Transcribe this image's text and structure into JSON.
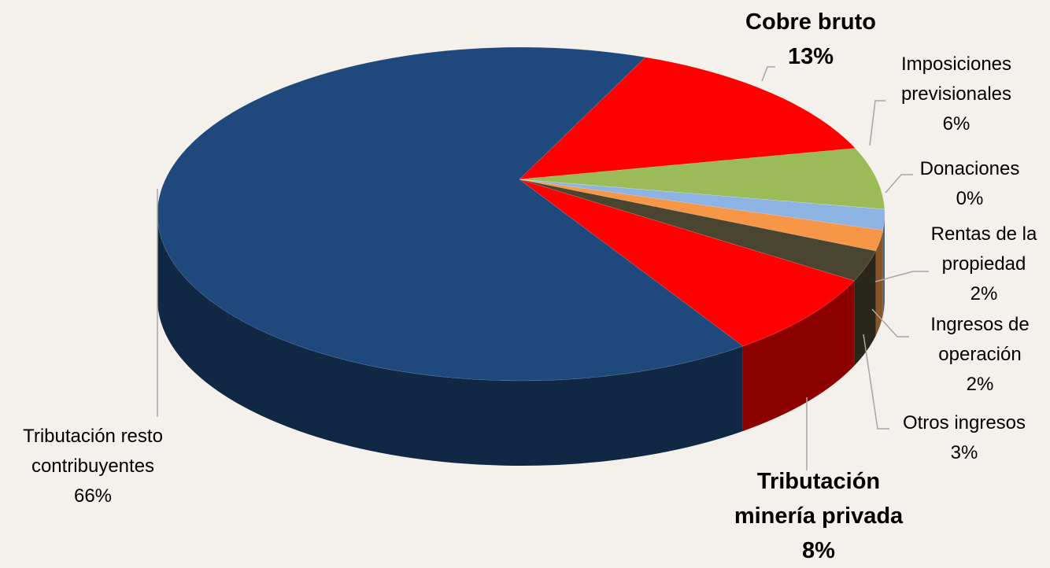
{
  "chart_data": {
    "type": "pie",
    "categories": [
      "Cobre bruto",
      "Imposiciones previsionales",
      "Donaciones",
      "Rentas de la propiedad",
      "Ingresos de operación",
      "Otros ingresos",
      "Tributación minería privada",
      "Tributación resto contribuyentes"
    ],
    "values": [
      13,
      6,
      0,
      2,
      2,
      3,
      8,
      66
    ],
    "value_labels": [
      "13%",
      "6%",
      "0%",
      "2%",
      "2%",
      "3%",
      "8%",
      "66%"
    ],
    "colors": [
      "#ff0000",
      "#9bbb59",
      "#4bacc6",
      "#8eb4e3",
      "#f79646",
      "#4a4530",
      "#ff0000",
      "#1f497d"
    ]
  }
}
